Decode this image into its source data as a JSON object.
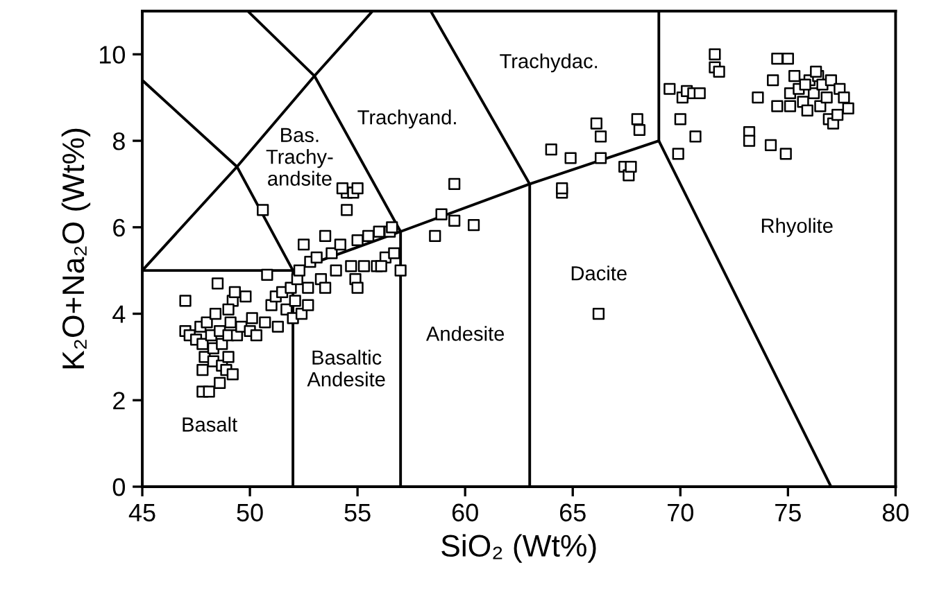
{
  "chart_data": {
    "type": "scatter",
    "xlabel": "SiO₂ (Wt%)",
    "ylabel": "K₂O+Na₂O (Wt%)",
    "xlim": [
      45,
      80
    ],
    "ylim": [
      0,
      11
    ],
    "xticks": [
      45,
      50,
      55,
      60,
      65,
      70,
      75,
      80
    ],
    "yticks": [
      0,
      2,
      4,
      6,
      8,
      10
    ],
    "grid": false,
    "series": [
      {
        "color": "#000000",
        "marker": "square",
        "x": [
          47.0,
          47.0,
          47.2,
          47.5,
          47.7,
          47.8,
          47.9,
          47.8,
          47.8,
          48.1,
          48.0,
          48.2,
          48.3,
          48.3,
          48.5,
          48.4,
          48.6,
          48.7,
          48.7,
          48.6,
          48.9,
          49.0,
          49.0,
          49.1,
          49.2,
          49.3,
          49.0,
          49.4,
          49.2,
          49.6,
          49.8,
          50.0,
          50.3,
          50.1,
          50.7,
          50.8,
          51.0,
          51.2,
          51.3,
          51.5,
          51.7,
          51.9,
          52.0,
          52.1,
          52.2,
          52.4,
          52.7,
          52.7,
          52.3,
          52.5,
          52.8,
          53.1,
          53.3,
          53.5,
          53.5,
          53.8,
          54.0,
          54.2,
          54.5,
          54.5,
          54.3,
          54.8,
          55.0,
          54.9,
          55.0,
          55.3,
          55.0,
          55.5,
          55.9,
          56.0,
          56.3,
          56.5,
          56.6,
          56.7,
          57.0,
          50.6,
          56.1,
          54.7,
          58.6,
          58.9,
          59.5,
          59.5,
          60.4,
          64.0,
          64.5,
          64.5,
          64.9,
          66.1,
          66.3,
          66.3,
          66.2,
          67.4,
          67.6,
          67.7,
          68.0,
          68.1,
          69.5,
          69.9,
          70.0,
          70.1,
          70.3,
          70.6,
          70.9,
          70.7,
          71.6,
          71.6,
          71.8,
          73.2,
          73.2,
          73.6,
          74.2,
          74.3,
          74.5,
          74.5,
          74.9,
          75.0,
          75.1,
          75.1,
          75.3,
          75.5,
          75.7,
          75.9,
          76.0,
          76.2,
          76.4,
          76.5,
          76.6,
          76.8,
          76.9,
          77.0,
          77.1,
          77.3,
          77.4,
          77.6,
          77.8,
          76.3,
          75.8
        ],
        "values": [
          4.3,
          3.6,
          3.5,
          3.4,
          3.7,
          3.3,
          3.0,
          2.7,
          2.2,
          2.2,
          3.8,
          3.5,
          3.2,
          2.9,
          4.7,
          4.0,
          3.6,
          3.3,
          2.8,
          2.4,
          2.7,
          3.0,
          3.5,
          3.8,
          4.3,
          4.5,
          4.1,
          3.5,
          2.6,
          3.7,
          4.4,
          3.6,
          3.5,
          3.9,
          3.8,
          4.9,
          4.2,
          4.4,
          3.7,
          4.5,
          4.1,
          4.6,
          3.9,
          4.3,
          4.8,
          4.0,
          4.6,
          4.2,
          5.0,
          5.6,
          5.2,
          5.3,
          4.8,
          4.6,
          5.8,
          5.4,
          5.0,
          5.6,
          6.4,
          6.8,
          6.9,
          6.8,
          6.9,
          4.8,
          4.6,
          5.1,
          5.7,
          5.8,
          5.1,
          5.9,
          5.3,
          5.9,
          6.0,
          5.4,
          5.0,
          6.4,
          5.1,
          5.1,
          5.8,
          6.3,
          6.15,
          7.0,
          6.05,
          7.8,
          6.8,
          6.9,
          7.6,
          8.4,
          8.1,
          7.6,
          4.0,
          7.4,
          7.2,
          7.4,
          8.5,
          8.25,
          9.2,
          7.7,
          8.5,
          9.0,
          9.15,
          9.1,
          9.1,
          8.1,
          10.0,
          9.7,
          9.6,
          8.2,
          8.0,
          9.0,
          7.9,
          9.4,
          9.9,
          8.8,
          7.7,
          9.9,
          9.1,
          8.8,
          9.5,
          9.2,
          8.9,
          8.7,
          9.4,
          9.1,
          9.5,
          8.8,
          9.3,
          9.0,
          8.5,
          9.4,
          8.4,
          8.6,
          9.2,
          9.0,
          8.75,
          9.6,
          9.3
        ]
      },
      {
        "type": "line",
        "color": "#000000",
        "marker": "none",
        "x": [
          45,
          52,
          52
        ],
        "values": [
          5,
          5,
          0
        ]
      },
      {
        "type": "line",
        "color": "#000000",
        "marker": "none",
        "x": [
          52,
          57,
          63,
          69,
          77
        ],
        "values": [
          5,
          5.9,
          7,
          8,
          0
        ]
      },
      {
        "type": "line",
        "color": "#000000",
        "marker": "none",
        "x": [
          57,
          57
        ],
        "values": [
          0,
          5.9
        ]
      },
      {
        "type": "line",
        "color": "#000000",
        "marker": "none",
        "x": [
          63,
          63
        ],
        "values": [
          0,
          7
        ]
      },
      {
        "type": "line",
        "color": "#000000",
        "marker": "none",
        "x": [
          69,
          69
        ],
        "values": [
          8,
          11
        ]
      },
      {
        "type": "line",
        "color": "#000000",
        "marker": "none",
        "x": [
          45,
          49.4,
          53,
          55.7
        ],
        "values": [
          5,
          7.4,
          9.5,
          11
        ]
      },
      {
        "type": "line",
        "color": "#000000",
        "marker": "none",
        "x": [
          45,
          49.4,
          52
        ],
        "values": [
          9.4,
          7.4,
          5
        ]
      },
      {
        "type": "line",
        "color": "#000000",
        "marker": "none",
        "x": [
          49.9,
          53,
          57
        ],
        "values": [
          11,
          9.5,
          5.9
        ]
      },
      {
        "type": "line",
        "color": "#000000",
        "marker": "none",
        "x": [
          63,
          58.4
        ],
        "values": [
          7,
          11
        ]
      }
    ],
    "annotations": [
      "Basalt",
      "Basaltic\nAndesite",
      "Andesite",
      "Dacite",
      "Rhyolite",
      "Trachydac.",
      "Trachyand.",
      "Bas.\nTrachy-\nandsite"
    ]
  }
}
